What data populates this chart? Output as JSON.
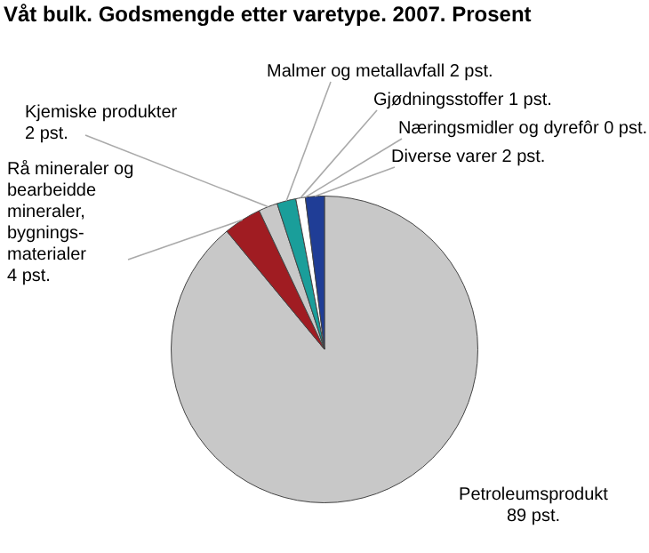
{
  "chart_data": {
    "type": "pie",
    "title": "Våt bulk. Godsmengde etter varetype. 2007. Prosent",
    "categories": [
      "Petroleumsprodukt",
      "Rå mineraler og bearbeidde mineraler, bygnings-materialer",
      "Kjemiske produkter",
      "Malmer og metallavfall",
      "Gjødningsstoffer",
      "Næringsmidler og dyrefôr",
      "Diverse varer"
    ],
    "values": [
      89,
      4,
      2,
      2,
      1,
      0,
      2
    ],
    "colors": [
      "#c8c8c8",
      "#a01c22",
      "#c8c8c8",
      "#1a9e9a",
      "#ffffff",
      "#000000",
      "#1f3d96"
    ],
    "value_labels": [
      "89 pst.",
      "4 pst.",
      "2 pst.",
      "2 pst.",
      "1 pst.",
      "0 pst.",
      "2 pst."
    ],
    "legend": false
  }
}
